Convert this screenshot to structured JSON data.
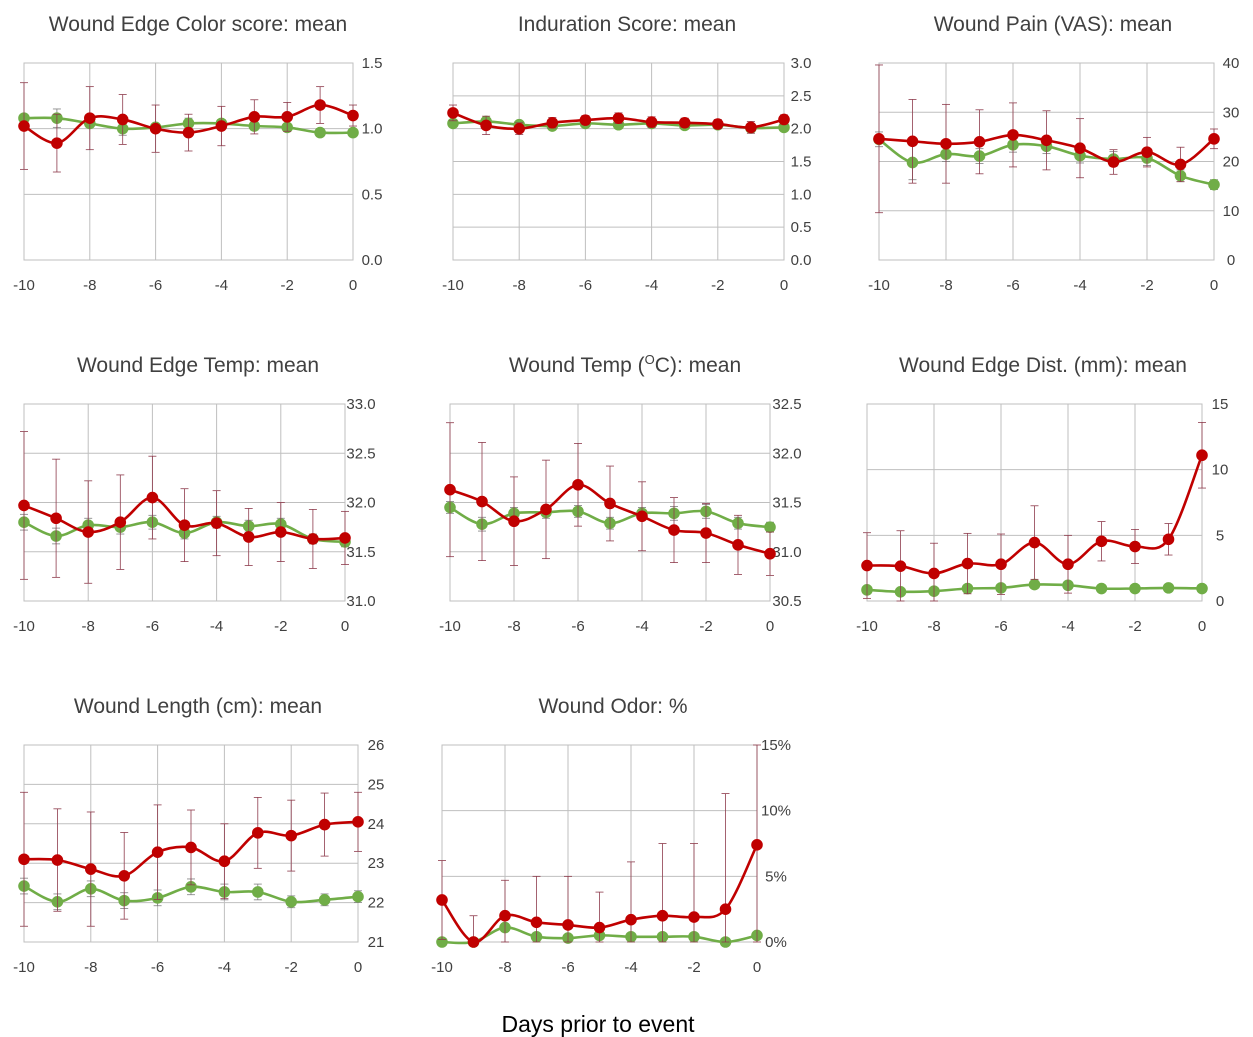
{
  "figure": {
    "x_axis_label": "Days prior to event"
  },
  "colors": {
    "event": "#c00000",
    "event_marker": "#c00000",
    "event_errorbar": "#8e3b4c",
    "control": "#70ad47",
    "control_marker": "#70ad47",
    "control_errorbar": "#7f7f7f",
    "grid": "#bfbfbf",
    "text": "#404040"
  },
  "chart_data": [
    {
      "type": "line",
      "title": "Wound Edge Color score: mean",
      "x": [
        -10,
        -9,
        -8,
        -7,
        -6,
        -5,
        -4,
        -3,
        -2,
        -1,
        0
      ],
      "x_ticks": [
        -10,
        -8,
        -6,
        -4,
        -2,
        0
      ],
      "x_tick_labels": [
        "-10",
        "-8",
        "-6",
        "-4",
        "-2",
        "0"
      ],
      "xlim": [
        -10,
        0
      ],
      "ylim": [
        0,
        1.5
      ],
      "y_ticks": [
        0,
        0.5,
        1,
        1.5
      ],
      "y_tick_labels": [
        "0.0",
        "0.5",
        "1.0",
        "1.5"
      ],
      "y_axis_side": "right",
      "grid": true,
      "series": [
        {
          "key": "control",
          "values": [
            1.08,
            1.08,
            1.04,
            1.0,
            1.01,
            1.04,
            1.04,
            1.02,
            1.01,
            0.97,
            0.97
          ],
          "err": [
            0.03,
            0.07,
            0.03,
            0.05,
            0.03,
            0.04,
            0.03,
            0.03,
            0.02,
            0.03,
            0.02
          ]
        },
        {
          "key": "event",
          "values": [
            1.02,
            0.89,
            1.08,
            1.07,
            1.0,
            0.97,
            1.02,
            1.09,
            1.09,
            1.18,
            1.1
          ],
          "err": [
            0.33,
            0.22,
            0.24,
            0.19,
            0.18,
            0.14,
            0.15,
            0.13,
            0.11,
            0.14,
            0.08
          ]
        }
      ]
    },
    {
      "type": "line",
      "title": "Induration Score: mean",
      "x": [
        -10,
        -9,
        -8,
        -7,
        -6,
        -5,
        -4,
        -3,
        -2,
        -1,
        0
      ],
      "x_ticks": [
        -10,
        -8,
        -6,
        -4,
        -2,
        0
      ],
      "x_tick_labels": [
        "-10",
        "-8",
        "-6",
        "-4",
        "-2",
        "0"
      ],
      "xlim": [
        -10,
        0
      ],
      "ylim": [
        0,
        3
      ],
      "y_ticks": [
        0,
        0.5,
        1,
        1.5,
        2,
        2.5,
        3
      ],
      "y_tick_labels": [
        "0.0",
        "0.5",
        "1.0",
        "1.5",
        "2.0",
        "2.5",
        "3.0"
      ],
      "y_axis_side": "right",
      "grid": true,
      "series": [
        {
          "key": "control",
          "values": [
            2.08,
            2.11,
            2.06,
            2.04,
            2.08,
            2.06,
            2.08,
            2.05,
            2.06,
            2.01,
            2.02
          ],
          "err": [
            0.04,
            0.04,
            0.03,
            0.03,
            0.03,
            0.03,
            0.03,
            0.03,
            0.03,
            0.03,
            0.03
          ]
        },
        {
          "key": "event",
          "values": [
            2.24,
            2.05,
            2.0,
            2.09,
            2.13,
            2.16,
            2.1,
            2.09,
            2.07,
            2.02,
            2.14
          ],
          "err": [
            0.12,
            0.14,
            0.09,
            0.08,
            0.07,
            0.08,
            0.08,
            0.07,
            0.07,
            0.09,
            0.07
          ]
        }
      ]
    },
    {
      "type": "line",
      "title": "Wound Pain (VAS): mean",
      "x": [
        -10,
        -9,
        -8,
        -7,
        -6,
        -5,
        -4,
        -3,
        -2,
        -1,
        0
      ],
      "x_ticks": [
        -10,
        -8,
        -6,
        -4,
        -2,
        0
      ],
      "x_tick_labels": [
        "-10",
        "-8",
        "-6",
        "-4",
        "-2",
        "0"
      ],
      "xlim": [
        -10,
        0
      ],
      "ylim": [
        0,
        40
      ],
      "y_ticks": [
        0,
        10,
        20,
        30,
        40
      ],
      "y_tick_labels": [
        "0",
        "10",
        "20",
        "30",
        "40"
      ],
      "y_axis_side": "right",
      "grid": true,
      "series": [
        {
          "key": "control",
          "values": [
            24.5,
            19.8,
            21.5,
            21.1,
            23.4,
            23.1,
            21.2,
            20.5,
            20.7,
            17.1,
            15.3
          ],
          "err": [
            1.5,
            3.5,
            1.5,
            1.5,
            1.5,
            1.5,
            1.5,
            1.5,
            1.5,
            1.2,
            1.0
          ]
        },
        {
          "key": "event",
          "values": [
            24.6,
            24.1,
            23.6,
            24.0,
            25.4,
            24.3,
            22.7,
            19.9,
            21.9,
            19.4,
            24.6
          ],
          "err": [
            15.0,
            8.5,
            8.0,
            6.5,
            6.5,
            6.0,
            6.0,
            2.5,
            3.0,
            3.5,
            2.0
          ]
        }
      ]
    },
    {
      "type": "line",
      "title": "Wound Edge Temp: mean",
      "x": [
        -10,
        -9,
        -8,
        -7,
        -6,
        -5,
        -4,
        -3,
        -2,
        -1,
        0
      ],
      "x_ticks": [
        -10,
        -8,
        -6,
        -4,
        -2,
        0
      ],
      "x_tick_labels": [
        "-10",
        "-8",
        "-6",
        "-4",
        "-2",
        "0"
      ],
      "xlim": [
        -10,
        0
      ],
      "ylim": [
        31,
        33
      ],
      "y_ticks": [
        31,
        31.5,
        32,
        32.5,
        33
      ],
      "y_tick_labels": [
        "31.0",
        "31.5",
        "32.0",
        "32.5",
        "33.0"
      ],
      "y_axis_side": "right",
      "grid": true,
      "series": [
        {
          "key": "control",
          "values": [
            31.8,
            31.66,
            31.77,
            31.75,
            31.8,
            31.69,
            31.8,
            31.76,
            31.78,
            31.63,
            31.6
          ],
          "err": [
            0.08,
            0.08,
            0.07,
            0.07,
            0.07,
            0.06,
            0.06,
            0.06,
            0.06,
            0.05,
            0.05
          ]
        },
        {
          "key": "event",
          "values": [
            31.97,
            31.84,
            31.7,
            31.8,
            32.05,
            31.77,
            31.79,
            31.65,
            31.7,
            31.63,
            31.64
          ],
          "err": [
            0.75,
            0.6,
            0.52,
            0.48,
            0.42,
            0.37,
            0.33,
            0.29,
            0.3,
            0.3,
            0.27
          ]
        }
      ]
    },
    {
      "type": "line",
      "title": "Wound Temp (OC): mean",
      "title_parts": {
        "before": "Wound Temp (",
        "sup": "O",
        "after": "C): mean"
      },
      "x": [
        -10,
        -9,
        -8,
        -7,
        -6,
        -5,
        -4,
        -3,
        -2,
        -1,
        0
      ],
      "x_ticks": [
        -10,
        -8,
        -6,
        -4,
        -2,
        0
      ],
      "x_tick_labels": [
        "-10",
        "-8",
        "-6",
        "-4",
        "-2",
        "0"
      ],
      "xlim": [
        -10,
        0
      ],
      "ylim": [
        30.5,
        32.5
      ],
      "y_ticks": [
        30.5,
        31,
        31.5,
        32,
        32.5
      ],
      "y_tick_labels": [
        "30.5",
        "31.0",
        "31.5",
        "32.0",
        "32.5"
      ],
      "y_axis_side": "right",
      "grid": true,
      "series": [
        {
          "key": "control",
          "values": [
            31.45,
            31.28,
            31.39,
            31.4,
            31.41,
            31.29,
            31.39,
            31.39,
            31.41,
            31.29,
            31.25
          ],
          "err": [
            0.06,
            0.07,
            0.06,
            0.06,
            0.06,
            0.06,
            0.06,
            0.07,
            0.07,
            0.06,
            0.05
          ]
        },
        {
          "key": "event",
          "values": [
            31.63,
            31.51,
            31.31,
            31.43,
            31.68,
            31.49,
            31.36,
            31.22,
            31.19,
            31.07,
            30.98
          ],
          "err": [
            0.68,
            0.6,
            0.45,
            0.5,
            0.42,
            0.38,
            0.35,
            0.33,
            0.3,
            0.3,
            0.22
          ]
        }
      ]
    },
    {
      "type": "line",
      "title": "Wound Edge Dist. (mm): mean",
      "x": [
        -10,
        -9,
        -8,
        -7,
        -6,
        -5,
        -4,
        -3,
        -2,
        -1,
        0
      ],
      "x_ticks": [
        -10,
        -8,
        -6,
        -4,
        -2,
        0
      ],
      "x_tick_labels": [
        "-10",
        "-8",
        "-6",
        "-4",
        "-2",
        "0"
      ],
      "xlim": [
        -10,
        0
      ],
      "ylim": [
        0,
        15
      ],
      "y_ticks": [
        0,
        5,
        10,
        15
      ],
      "y_tick_labels": [
        "0",
        "5",
        "10",
        "15"
      ],
      "y_axis_side": "right",
      "grid": true,
      "series": [
        {
          "key": "control",
          "values": [
            0.85,
            0.7,
            0.75,
            0.95,
            1.0,
            1.25,
            1.2,
            0.95,
            0.95,
            1.0,
            0.95
          ],
          "err": [
            0.2,
            0.2,
            0.2,
            0.2,
            0.2,
            0.3,
            0.3,
            0.2,
            0.2,
            0.2,
            0.2
          ]
        },
        {
          "key": "event",
          "values": [
            2.7,
            2.65,
            2.1,
            2.85,
            2.8,
            4.45,
            2.8,
            4.55,
            4.15,
            4.7,
            11.1
          ],
          "err": [
            2.5,
            2.7,
            2.3,
            2.3,
            2.3,
            2.8,
            2.2,
            1.5,
            1.3,
            1.2,
            2.5
          ]
        }
      ]
    },
    {
      "type": "line",
      "title": "Wound Length (cm): mean",
      "x": [
        -10,
        -9,
        -8,
        -7,
        -6,
        -5,
        -4,
        -3,
        -2,
        -1,
        0
      ],
      "x_ticks": [
        -10,
        -8,
        -6,
        -4,
        -2,
        0
      ],
      "x_tick_labels": [
        "-10",
        "-8",
        "-6",
        "-4",
        "-2",
        "0"
      ],
      "xlim": [
        -10,
        0
      ],
      "ylim": [
        21,
        26
      ],
      "y_ticks": [
        21,
        22,
        23,
        24,
        25,
        26
      ],
      "y_tick_labels": [
        "21",
        "22",
        "23",
        "24",
        "25",
        "26"
      ],
      "y_axis_side": "right",
      "grid": true,
      "series": [
        {
          "key": "control",
          "values": [
            22.42,
            22.02,
            22.35,
            22.05,
            22.12,
            22.4,
            22.27,
            22.27,
            22.02,
            22.07,
            22.15
          ],
          "err": [
            0.2,
            0.2,
            0.2,
            0.2,
            0.2,
            0.2,
            0.2,
            0.2,
            0.15,
            0.15,
            0.15
          ]
        },
        {
          "key": "event",
          "values": [
            23.1,
            23.08,
            22.85,
            22.68,
            23.28,
            23.4,
            23.05,
            23.77,
            23.7,
            23.98,
            24.05
          ],
          "err": [
            1.7,
            1.3,
            1.45,
            1.1,
            1.2,
            0.95,
            0.95,
            0.9,
            0.9,
            0.8,
            0.75
          ]
        }
      ]
    },
    {
      "type": "line",
      "title": "Wound Odor: %",
      "x": [
        -10,
        -9,
        -8,
        -7,
        -6,
        -5,
        -4,
        -3,
        -2,
        -1,
        0
      ],
      "x_ticks": [
        -10,
        -8,
        -6,
        -4,
        -2,
        0
      ],
      "x_tick_labels": [
        "-10",
        "-8",
        "-6",
        "-4",
        "-2",
        "0"
      ],
      "xlim": [
        -10,
        0
      ],
      "ylim": [
        0,
        15
      ],
      "y_ticks": [
        0,
        5,
        10,
        15
      ],
      "y_tick_labels": [
        "0%",
        "5%",
        "10%",
        "15%"
      ],
      "y_axis_side": "right",
      "grid": true,
      "series": [
        {
          "key": "control",
          "values": [
            0.0,
            0.0,
            1.1,
            0.4,
            0.3,
            0.5,
            0.4,
            0.4,
            0.4,
            0.0,
            0.5
          ],
          "err": [
            0.05,
            0.05,
            0.3,
            0.2,
            0.2,
            0.2,
            0.2,
            0.2,
            0.2,
            0.05,
            0.2
          ]
        },
        {
          "key": "event",
          "values": [
            3.2,
            0.0,
            2.0,
            1.5,
            1.3,
            1.1,
            1.7,
            2.0,
            1.9,
            2.5,
            7.4
          ],
          "err": [
            3.0,
            2.0,
            2.7,
            3.5,
            3.7,
            2.7,
            4.4,
            5.5,
            5.6,
            8.8,
            14.0
          ]
        }
      ]
    }
  ]
}
